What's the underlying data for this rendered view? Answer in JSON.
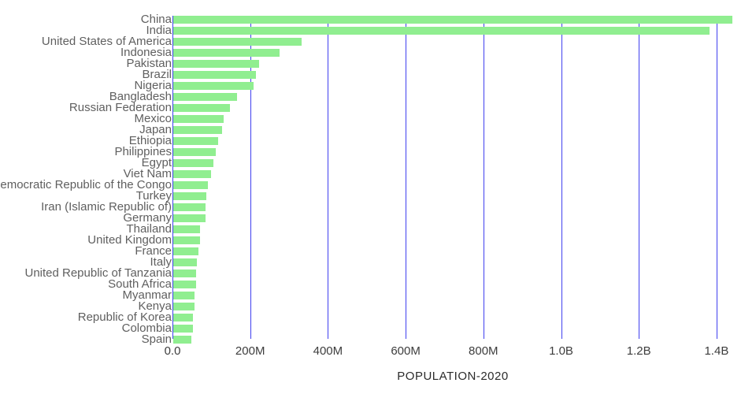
{
  "chart_data": {
    "type": "bar",
    "orientation": "horizontal",
    "title": "",
    "xlabel": "POPULATION-2020",
    "ylabel": "",
    "grid": true,
    "legend": false,
    "xlim": [
      0,
      1450000000
    ],
    "categories": [
      "China",
      "India",
      "United States of America",
      "Indonesia",
      "Pakistan",
      "Brazil",
      "Nigeria",
      "Bangladesh",
      "Russian Federation",
      "Mexico",
      "Japan",
      "Ethiopia",
      "Philippines",
      "Egypt",
      "Viet Nam",
      "Democratic Republic of the Congo",
      "Turkey",
      "Iran (Islamic Republic of)",
      "Germany",
      "Thailand",
      "United Kingdom",
      "France",
      "Italy",
      "United Republic of Tanzania",
      "South Africa",
      "Myanmar",
      "Kenya",
      "Republic of Korea",
      "Colombia",
      "Spain"
    ],
    "values": [
      1439323776,
      1380004385,
      331002651,
      273523615,
      220892340,
      212559417,
      206139589,
      164689383,
      145934462,
      128932753,
      126476461,
      114963588,
      109581078,
      102334404,
      97338579,
      89561403,
      84339067,
      83992949,
      83783942,
      69799978,
      67886011,
      65273511,
      60461826,
      59734218,
      59308690,
      54409800,
      53771296,
      51269185,
      50882891,
      46754778
    ],
    "x_ticks": [
      {
        "label": "0.0",
        "value": 0
      },
      {
        "label": "200M",
        "value": 200000000
      },
      {
        "label": "400M",
        "value": 400000000
      },
      {
        "label": "600M",
        "value": 600000000
      },
      {
        "label": "800M",
        "value": 800000000
      },
      {
        "label": "1.0B",
        "value": 1000000000
      },
      {
        "label": "1.2B",
        "value": 1200000000
      },
      {
        "label": "1.4B",
        "value": 1400000000
      }
    ],
    "colors": {
      "bar": "#90ee90",
      "gridline": "#3f3fef",
      "category_label": "#5f5f5f",
      "tick_label": "#3d3d3d",
      "axis_label": "#2b2b2b",
      "background": "#ffffff"
    }
  }
}
